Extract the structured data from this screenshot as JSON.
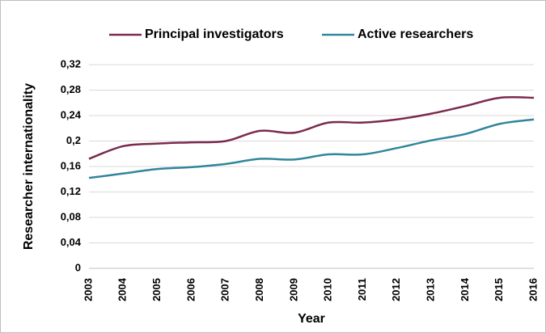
{
  "chart_data": {
    "type": "line",
    "x_label": "Year",
    "y_label": "Researcher internationality",
    "categories": [
      "2003",
      "2004",
      "2005",
      "2006",
      "2007",
      "2008",
      "2009",
      "2010",
      "2011",
      "2012",
      "2013",
      "2014",
      "2015",
      "2016"
    ],
    "series": [
      {
        "name": "Principal investigators",
        "color": "#7b2a4e",
        "values": [
          0.172,
          0.192,
          0.196,
          0.198,
          0.2,
          0.216,
          0.213,
          0.229,
          0.229,
          0.234,
          0.243,
          0.255,
          0.268,
          0.268
        ]
      },
      {
        "name": "Active researchers",
        "color": "#31859c",
        "values": [
          0.142,
          0.149,
          0.156,
          0.159,
          0.164,
          0.172,
          0.171,
          0.179,
          0.179,
          0.189,
          0.201,
          0.211,
          0.227,
          0.234
        ]
      }
    ],
    "ylim": [
      0,
      0.32
    ],
    "yticks": [
      0,
      {
        "value": 0.04,
        "label": "0,04"
      },
      {
        "value": 0.08,
        "label": "0,08"
      },
      {
        "value": 0.12,
        "label": "0,12"
      },
      {
        "value": 0.16,
        "label": "0,16"
      },
      {
        "value": 0.2,
        "label": "0,2"
      },
      {
        "value": 0.24,
        "label": "0,24"
      },
      {
        "value": 0.28,
        "label": "0,28"
      },
      {
        "value": 0.32,
        "label": "0,32"
      }
    ],
    "grid": true,
    "legend": "top"
  }
}
